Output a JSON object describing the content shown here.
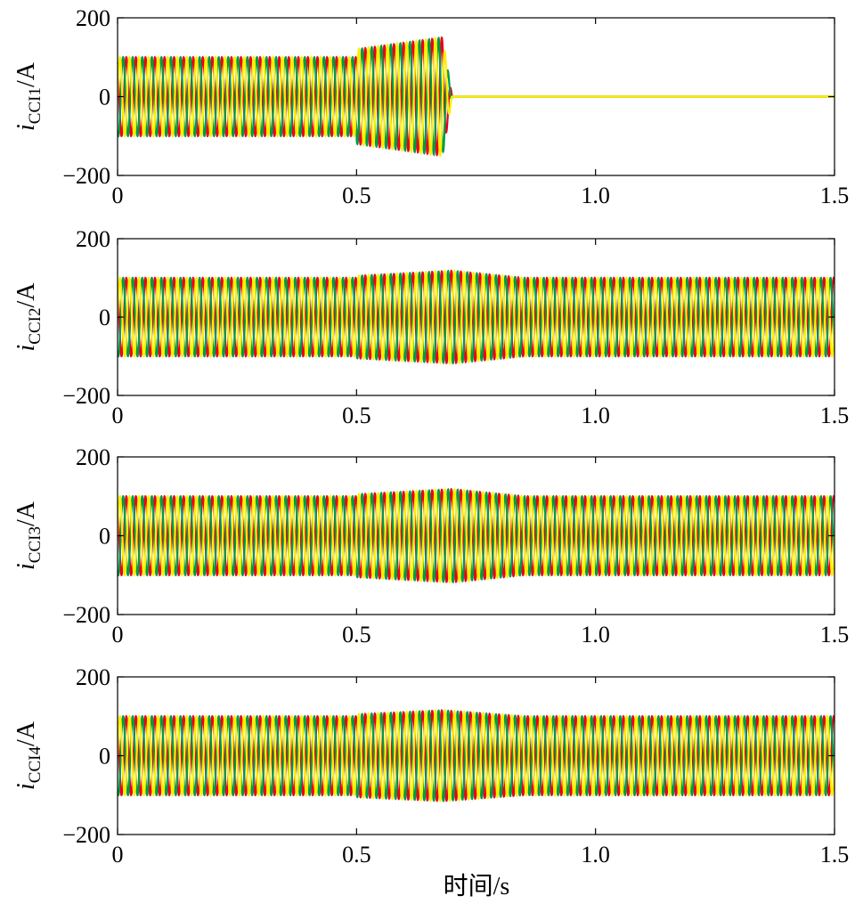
{
  "xlabel": "时间/s",
  "colors": {
    "phase_a": "#ffee00",
    "phase_b": "#009a44",
    "phase_c": "#e8001c"
  },
  "chart_data": [
    {
      "type": "line",
      "ylabel_main": "i",
      "ylabel_sub": "CCI1",
      "ylabel_unit": "/A",
      "xlim": [
        0,
        1.5
      ],
      "ylim": [
        -200,
        200
      ],
      "xticks": [
        "0",
        "0.5",
        "1.0",
        "1.5"
      ],
      "yticks": [
        "200",
        "0",
        "−200"
      ],
      "series": [
        {
          "values": [
            100
          ]
        },
        {
          "values": [
            100
          ]
        },
        {
          "values": [
            100
          ]
        }
      ],
      "events": [
        {
          "t": 0.5,
          "peak": 120
        },
        {
          "t": 0.68,
          "peak": 150
        },
        {
          "t": 0.7,
          "peak": 0
        }
      ]
    },
    {
      "type": "line",
      "ylabel_main": "i",
      "ylabel_sub": "CCI2",
      "ylabel_unit": "/A",
      "xlim": [
        0,
        1.5
      ],
      "ylim": [
        -200,
        200
      ],
      "xticks": [
        "0",
        "0.5",
        "1.0",
        "1.5"
      ],
      "yticks": [
        "200",
        "0",
        "−200"
      ],
      "series": [
        {
          "values": [
            100
          ]
        },
        {
          "values": [
            100
          ]
        },
        {
          "values": [
            100
          ]
        }
      ],
      "events": [
        {
          "t": 0.5,
          "peak": 105
        },
        {
          "t": 0.7,
          "peak": 118
        },
        {
          "t": 0.85,
          "peak": 100
        }
      ]
    },
    {
      "type": "line",
      "ylabel_main": "i",
      "ylabel_sub": "CCI3",
      "ylabel_unit": "/A",
      "xlim": [
        0,
        1.5
      ],
      "ylim": [
        -200,
        200
      ],
      "xticks": [
        "0",
        "0.5",
        "1.0",
        "1.5"
      ],
      "yticks": [
        "200",
        "0",
        "−200"
      ],
      "series": [
        {
          "values": [
            100
          ]
        },
        {
          "values": [
            100
          ]
        },
        {
          "values": [
            100
          ]
        }
      ],
      "events": [
        {
          "t": 0.5,
          "peak": 105
        },
        {
          "t": 0.7,
          "peak": 118
        },
        {
          "t": 0.85,
          "peak": 100
        }
      ]
    },
    {
      "type": "line",
      "ylabel_main": "i",
      "ylabel_sub": "CCI4",
      "ylabel_unit": "/A",
      "xlim": [
        0,
        1.5
      ],
      "ylim": [
        -200,
        200
      ],
      "xticks": [
        "0",
        "0.5",
        "1.0",
        "1.5"
      ],
      "yticks": [
        "200",
        "0",
        "−200"
      ],
      "series": [
        {
          "values": [
            100
          ]
        },
        {
          "values": [
            100
          ]
        },
        {
          "values": [
            100
          ]
        }
      ],
      "events": [
        {
          "t": 0.5,
          "peak": 105
        },
        {
          "t": 0.68,
          "peak": 115
        },
        {
          "t": 0.85,
          "peak": 100
        }
      ]
    }
  ]
}
